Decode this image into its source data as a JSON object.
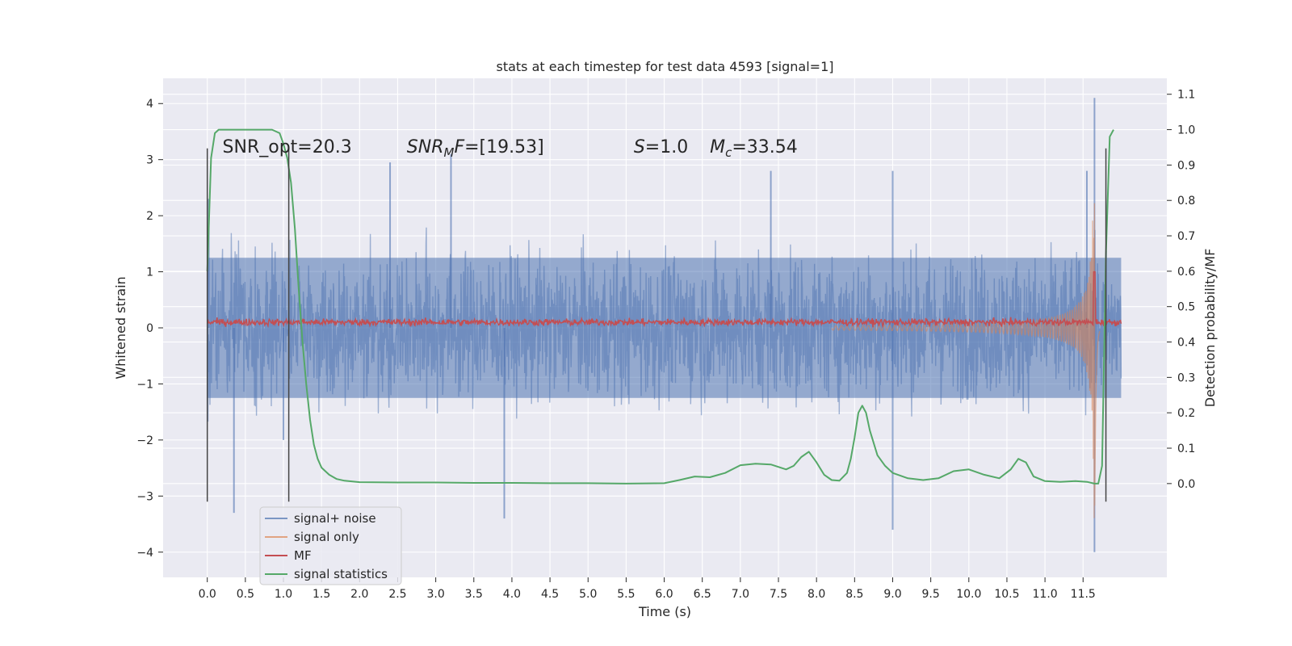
{
  "chart_data": {
    "type": "line",
    "title": "stats at each timestep for test data 4593 [signal=1]",
    "xlabel": "Time (s)",
    "ylabel": "Whitened strain",
    "y2label": "Detection probability/MF",
    "xlim": [
      -0.58,
      12.6
    ],
    "ylim": [
      -4.45,
      4.45
    ],
    "y2lim": [
      -0.265,
      1.145
    ],
    "x_ticks": [
      0.0,
      0.5,
      1.0,
      1.5,
      2.0,
      2.5,
      3.0,
      3.5,
      4.0,
      4.5,
      5.0,
      5.5,
      6.0,
      6.5,
      7.0,
      7.5,
      8.0,
      8.5,
      9.0,
      9.5,
      10.0,
      10.5,
      11.0,
      11.5
    ],
    "x_tick_labels": [
      "0.0",
      "0.5",
      "1.0",
      "1.5",
      "2.0",
      "2.5",
      "3.0",
      "3.5",
      "4.0",
      "4.5",
      "5.0",
      "5.5",
      "6.0",
      "6.5",
      "7.0",
      "7.5",
      "8.0",
      "8.5",
      "9.0",
      "9.5",
      "10.0",
      "10.5",
      "11.0",
      "11.5"
    ],
    "y_ticks": [
      -4,
      -3,
      -2,
      -1,
      0,
      1,
      2,
      3,
      4
    ],
    "y_tick_labels": [
      "−4",
      "−3",
      "−2",
      "−1",
      "0",
      "1",
      "2",
      "3",
      "4"
    ],
    "y2_ticks": [
      0.0,
      0.1,
      0.2,
      0.3,
      0.4,
      0.5,
      0.6,
      0.7,
      0.8,
      0.9,
      1.0,
      1.1
    ],
    "y2_tick_labels": [
      "0.0",
      "0.1",
      "0.2",
      "0.3",
      "0.4",
      "0.5",
      "0.6",
      "0.7",
      "0.8",
      "0.9",
      "1.0",
      "1.1"
    ],
    "grid": true,
    "legend_position": "lower-left",
    "annotations": [
      {
        "parts": [
          {
            "t": "SNR_opt=20.3",
            "style": "normal"
          }
        ],
        "x": 0.2,
        "y": 3.3
      },
      {
        "parts": [
          {
            "t": "SNR",
            "style": "italic"
          },
          {
            "t": "M",
            "style": "italic-sub"
          },
          {
            "t": "F",
            "style": "italic"
          },
          {
            "t": "=[19.53]",
            "style": "normal"
          }
        ],
        "x": 2.62,
        "y": 3.3
      },
      {
        "parts": [
          {
            "t": "S",
            "style": "italic"
          },
          {
            "t": "=1.0",
            "style": "normal"
          }
        ],
        "x": 5.6,
        "y": 3.3
      },
      {
        "parts": [
          {
            "t": "M",
            "style": "italic"
          },
          {
            "t": "c",
            "style": "italic-sub"
          },
          {
            "t": "=33.54",
            "style": "normal"
          }
        ],
        "x": 6.6,
        "y": 3.3
      }
    ],
    "vlines": [
      {
        "x": 0.0,
        "y1": -3.1,
        "y2": 3.2
      },
      {
        "x": 1.07,
        "y1": -3.1,
        "y2": 3.2
      },
      {
        "x": 11.8,
        "y1": -3.1,
        "y2": 3.2
      }
    ],
    "series": [
      {
        "name": "signal+ noise",
        "color": "#4c72b0",
        "opacity": 0.5,
        "axis": "left",
        "kind": "noise",
        "x_range": [
          0.0,
          12.0
        ],
        "core_amplitude": 1.25,
        "spike_peaks": [
          {
            "x": 0.02,
            "y": 2.3
          },
          {
            "x": 0.35,
            "y": -3.3
          },
          {
            "x": 1.0,
            "y": -2.0
          },
          {
            "x": 2.4,
            "y": 2.95
          },
          {
            "x": 3.2,
            "y": 3.1
          },
          {
            "x": 3.9,
            "y": -3.4
          },
          {
            "x": 7.4,
            "y": 2.8
          },
          {
            "x": 9.0,
            "y": -3.6
          },
          {
            "x": 9.0,
            "y": 2.8
          },
          {
            "x": 11.55,
            "y": 2.8
          },
          {
            "x": 11.65,
            "y": 4.1
          },
          {
            "x": 11.65,
            "y": -4.0
          }
        ]
      },
      {
        "name": "signal only",
        "color": "#dd8452",
        "opacity": 0.55,
        "axis": "left",
        "kind": "chirp",
        "x_range": [
          8.2,
          11.72
        ],
        "peak": 3.55,
        "trough": -3.9,
        "peak_x": 11.65
      },
      {
        "name": "MF",
        "color": "#c44e52",
        "opacity": 1,
        "axis": "left",
        "kind": "mf",
        "x_range": [
          0.0,
          12.0
        ],
        "baseline": 0.1,
        "peak": 1.0,
        "peak_x": 11.65
      },
      {
        "name": "signal statistics",
        "color": "#55a868",
        "opacity": 1,
        "axis": "right",
        "kind": "line",
        "x": [
          0.0,
          0.05,
          0.1,
          0.15,
          0.2,
          0.3,
          0.5,
          0.7,
          0.85,
          0.95,
          1.0,
          1.05,
          1.1,
          1.15,
          1.2,
          1.25,
          1.3,
          1.35,
          1.4,
          1.45,
          1.5,
          1.6,
          1.7,
          1.8,
          2.0,
          2.5,
          3.0,
          3.5,
          4.0,
          4.5,
          5.0,
          5.5,
          6.0,
          6.2,
          6.4,
          6.6,
          6.8,
          7.0,
          7.2,
          7.4,
          7.6,
          7.7,
          7.8,
          7.9,
          8.0,
          8.1,
          8.2,
          8.3,
          8.4,
          8.45,
          8.5,
          8.55,
          8.6,
          8.65,
          8.7,
          8.8,
          8.9,
          9.0,
          9.2,
          9.4,
          9.6,
          9.8,
          10.0,
          10.2,
          10.4,
          10.55,
          10.65,
          10.75,
          10.85,
          11.0,
          11.2,
          11.4,
          11.55,
          11.65,
          11.7,
          11.75,
          11.8,
          11.85,
          11.9
        ],
        "y": [
          0.6,
          0.92,
          0.99,
          1.0,
          1.0,
          1.0,
          1.0,
          1.0,
          1.0,
          0.99,
          0.96,
          0.92,
          0.85,
          0.72,
          0.55,
          0.4,
          0.28,
          0.18,
          0.11,
          0.07,
          0.045,
          0.025,
          0.013,
          0.008,
          0.004,
          0.003,
          0.003,
          0.002,
          0.002,
          0.001,
          0.001,
          0.0,
          0.001,
          0.01,
          0.02,
          0.018,
          0.03,
          0.052,
          0.056,
          0.054,
          0.04,
          0.05,
          0.075,
          0.09,
          0.06,
          0.025,
          0.01,
          0.008,
          0.03,
          0.07,
          0.13,
          0.2,
          0.22,
          0.2,
          0.15,
          0.08,
          0.05,
          0.03,
          0.015,
          0.01,
          0.015,
          0.035,
          0.04,
          0.025,
          0.015,
          0.04,
          0.07,
          0.06,
          0.02,
          0.007,
          0.005,
          0.007,
          0.005,
          0.0,
          0.0,
          0.05,
          0.65,
          0.98,
          1.0
        ]
      }
    ]
  }
}
